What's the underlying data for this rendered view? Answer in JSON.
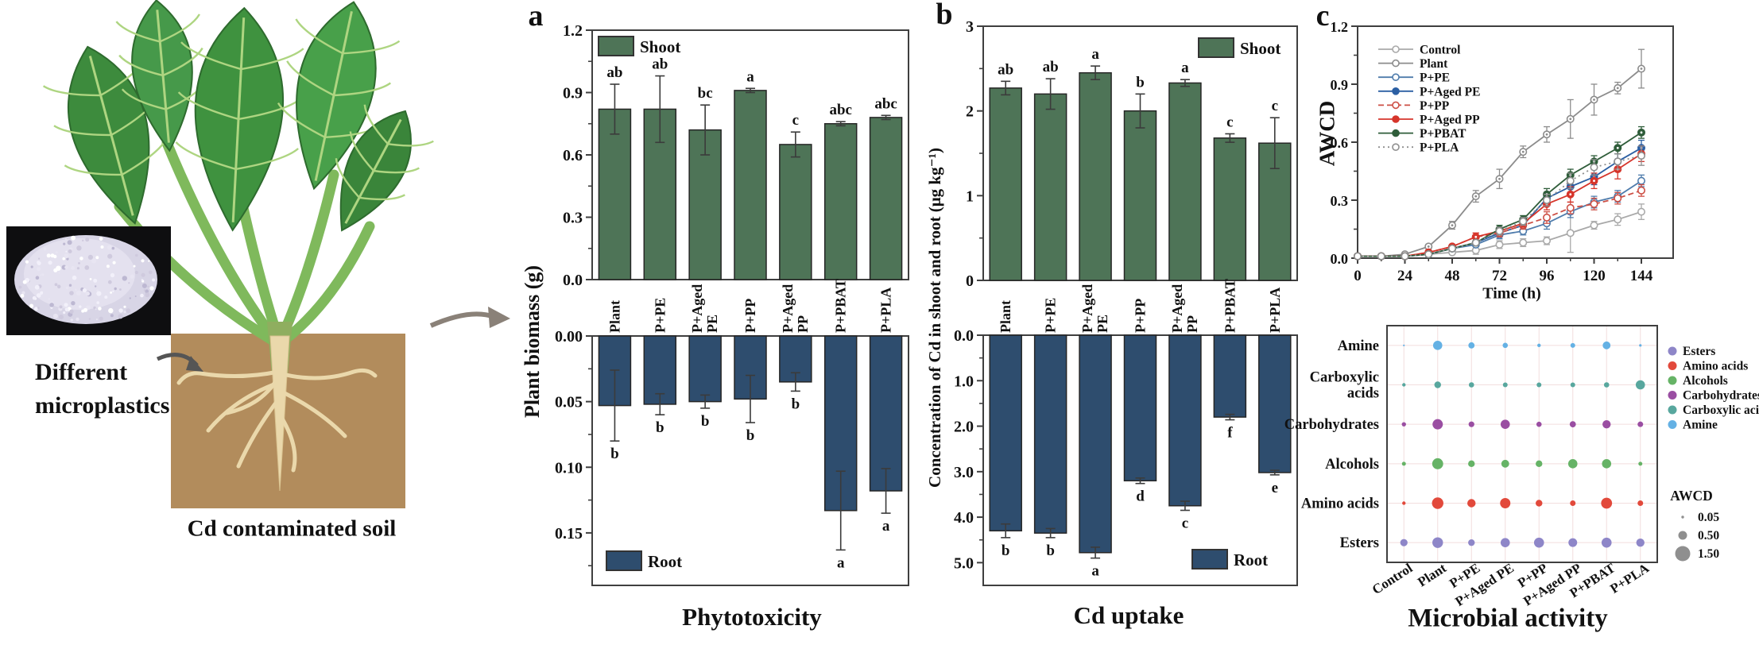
{
  "illustration": {
    "microplastics_label_line1": "Different",
    "microplastics_label_line2": "microplastics",
    "soil_caption": "Cd contaminated soil"
  },
  "panels": {
    "a": {
      "letter": "a",
      "ylabel": "Plant biomass (g)",
      "caption": "Phytotoxicity"
    },
    "b": {
      "letter": "b",
      "ylabel": "Concentration of Cd in shoot and root (μg kg⁻¹)",
      "caption": "Cd uptake"
    },
    "c": {
      "letter": "c",
      "ylabel": "AWCD",
      "xlabel": "Time (h)",
      "caption": "Microbial activity"
    }
  },
  "colors": {
    "shoot_bar": "#4e7457",
    "root_bar": "#2e4d6e",
    "frame": "#3f3f3f"
  },
  "chart_data": [
    {
      "id": "a_shoot",
      "type": "bar",
      "panel": "a",
      "direction": "up",
      "legend": {
        "label": "Shoot",
        "pos": "top-left"
      },
      "categories": [
        "Plant",
        "P+PE",
        "P+Aged PE",
        "P+PP",
        "P+Aged PP",
        "P+PBAT",
        "P+PLA"
      ],
      "values": [
        0.82,
        0.82,
        0.72,
        0.91,
        0.65,
        0.75,
        0.78
      ],
      "errors": [
        0.12,
        0.16,
        0.12,
        0.01,
        0.06,
        0.01,
        0.01
      ],
      "sig_letters": [
        "ab",
        "ab",
        "bc",
        "a",
        "c",
        "abc",
        "abc"
      ],
      "ylabel": "Plant biomass (g)",
      "ylim": [
        0,
        1.2
      ],
      "yticks": [
        0,
        0.3,
        0.6,
        0.9,
        1.2
      ],
      "ytick_labels": [
        "0.0",
        "0.3",
        "0.6",
        "0.9",
        "1.2"
      ],
      "yminor": 0.15,
      "show_category_labels": true
    },
    {
      "id": "a_root",
      "type": "bar",
      "panel": "a",
      "direction": "down",
      "legend": {
        "label": "Root",
        "pos": "bottom-left"
      },
      "categories": [
        "Plant",
        "P+PE",
        "P+Aged PE",
        "P+PP",
        "P+Aged PP",
        "P+PBAT",
        "P+PLA"
      ],
      "values": [
        0.053,
        0.052,
        0.05,
        0.048,
        0.035,
        0.133,
        0.118
      ],
      "errors": [
        0.027,
        0.008,
        0.005,
        0.018,
        0.007,
        0.03,
        0.017
      ],
      "sig_letters": [
        "b",
        "b",
        "b",
        "b",
        "b",
        "a",
        "a"
      ],
      "ylim": [
        0,
        0.19
      ],
      "yticks": [
        0,
        0.05,
        0.1,
        0.15
      ],
      "ytick_labels": [
        "0.00",
        "0.05",
        "0.10",
        "0.15"
      ],
      "yminor": 0.025,
      "show_category_labels": false
    },
    {
      "id": "b_shoot",
      "type": "bar",
      "panel": "b",
      "direction": "up",
      "legend": {
        "label": "Shoot",
        "pos": "top-right"
      },
      "categories": [
        "Plant",
        "P+PE",
        "P+Aged PE",
        "P+PP",
        "P+Aged PP",
        "P+PBAT",
        "P+PLA"
      ],
      "values": [
        2.27,
        2.2,
        2.45,
        2.0,
        2.33,
        1.68,
        1.62
      ],
      "errors": [
        0.08,
        0.18,
        0.08,
        0.2,
        0.04,
        0.05,
        0.3
      ],
      "sig_letters": [
        "ab",
        "ab",
        "a",
        "b",
        "a",
        "c",
        "c"
      ],
      "ylabel": "Concentration of Cd in shoot and root (μg kg⁻¹)",
      "ylim": [
        0,
        3
      ],
      "yticks": [
        0,
        1,
        2,
        3
      ],
      "ytick_labels": [
        "0",
        "1",
        "2",
        "3"
      ],
      "yminor": 0.5,
      "show_category_labels": true
    },
    {
      "id": "b_root",
      "type": "bar",
      "panel": "b",
      "direction": "down",
      "legend": {
        "label": "Root",
        "pos": "bottom-right"
      },
      "categories": [
        "Plant",
        "P+PE",
        "P+Aged PE",
        "P+PP",
        "P+Aged PP",
        "P+PBAT",
        "P+PLA"
      ],
      "values": [
        4.3,
        4.35,
        4.78,
        3.2,
        3.75,
        1.8,
        3.02
      ],
      "errors": [
        0.15,
        0.1,
        0.12,
        0.06,
        0.1,
        0.06,
        0.05
      ],
      "sig_letters": [
        "b",
        "b",
        "a",
        "d",
        "c",
        "f",
        "e"
      ],
      "ylim": [
        0,
        5.5
      ],
      "yticks": [
        0,
        1,
        2,
        3,
        4,
        5
      ],
      "ytick_labels": [
        "0.0",
        "1.0",
        "2.0",
        "3.0",
        "4.0",
        "5.0"
      ],
      "yminor": 0.5,
      "show_category_labels": false
    },
    {
      "id": "c_awcd",
      "type": "line",
      "panel": "c",
      "title": "",
      "xlabel": "Time (h)",
      "ylabel": "AWCD",
      "x": [
        0,
        12,
        24,
        36,
        48,
        60,
        72,
        84,
        96,
        108,
        120,
        132,
        144
      ],
      "xticks": [
        0,
        24,
        48,
        72,
        96,
        120,
        144
      ],
      "xminor": 12,
      "ylim": [
        0,
        1.2
      ],
      "yticks": [
        0,
        0.3,
        0.6,
        0.9,
        1.2
      ],
      "ytick_labels": [
        "0.0",
        "0.3",
        "0.6",
        "0.9",
        "1.2"
      ],
      "yminor": 0.15,
      "legend_position": "top-left",
      "series": [
        {
          "name": "Control",
          "color": "#a9a9a9",
          "marker": "open",
          "dash": "",
          "values": [
            0.01,
            0.01,
            0.01,
            0.02,
            0.03,
            0.04,
            0.07,
            0.08,
            0.09,
            0.13,
            0.17,
            0.2,
            0.24
          ],
          "errors": [
            0,
            0,
            0,
            0.01,
            0.01,
            0.02,
            0.02,
            0.02,
            0.02,
            0.1,
            0.02,
            0.03,
            0.04
          ]
        },
        {
          "name": "Plant",
          "color": "#8c8c8c",
          "marker": "opendot",
          "dash": "",
          "values": [
            0.01,
            0.01,
            0.02,
            0.06,
            0.17,
            0.32,
            0.41,
            0.55,
            0.64,
            0.72,
            0.82,
            0.88,
            0.98
          ],
          "errors": [
            0,
            0,
            0,
            0.01,
            0.02,
            0.03,
            0.05,
            0.03,
            0.04,
            0.1,
            0.08,
            0.03,
            0.1
          ]
        },
        {
          "name": "P+PE",
          "color": "#4f7cac",
          "marker": "open",
          "dash": "",
          "values": [
            0.01,
            0.01,
            0.01,
            0.02,
            0.05,
            0.07,
            0.12,
            0.14,
            0.18,
            0.24,
            0.29,
            0.32,
            0.4
          ],
          "errors": [
            0,
            0,
            0,
            0.01,
            0.01,
            0.01,
            0.02,
            0.02,
            0.03,
            0.03,
            0.03,
            0.03,
            0.03
          ]
        },
        {
          "name": "P+Aged PE",
          "color": "#2b5fa3",
          "marker": "filled",
          "dash": "",
          "values": [
            0.01,
            0.01,
            0.01,
            0.02,
            0.05,
            0.08,
            0.13,
            0.17,
            0.31,
            0.37,
            0.42,
            0.5,
            0.57
          ],
          "errors": [
            0,
            0,
            0,
            0.01,
            0.01,
            0.01,
            0.02,
            0.02,
            0.03,
            0.03,
            0.04,
            0.04,
            0.04
          ]
        },
        {
          "name": "P+PP",
          "color": "#cd4f45",
          "marker": "open",
          "dash": "7,4",
          "values": [
            0.01,
            0.01,
            0.01,
            0.03,
            0.06,
            0.11,
            0.13,
            0.17,
            0.21,
            0.26,
            0.28,
            0.31,
            0.35
          ],
          "errors": [
            0,
            0,
            0,
            0.01,
            0.01,
            0.02,
            0.02,
            0.02,
            0.03,
            0.03,
            0.03,
            0.03,
            0.03
          ]
        },
        {
          "name": "P+Aged PP",
          "color": "#d6352b",
          "marker": "filled",
          "dash": "",
          "values": [
            0.01,
            0.01,
            0.01,
            0.03,
            0.06,
            0.11,
            0.14,
            0.18,
            0.28,
            0.33,
            0.4,
            0.46,
            0.54
          ],
          "errors": [
            0,
            0,
            0,
            0.01,
            0.01,
            0.02,
            0.02,
            0.02,
            0.03,
            0.04,
            0.04,
            0.05,
            0.04
          ]
        },
        {
          "name": "P+PBAT",
          "color": "#2f5d3a",
          "marker": "filled",
          "dash": "",
          "values": [
            0.01,
            0.01,
            0.01,
            0.02,
            0.05,
            0.08,
            0.15,
            0.2,
            0.33,
            0.43,
            0.5,
            0.57,
            0.65
          ],
          "errors": [
            0,
            0,
            0,
            0.01,
            0.01,
            0.01,
            0.02,
            0.02,
            0.03,
            0.03,
            0.03,
            0.03,
            0.03
          ]
        },
        {
          "name": "P+PLA",
          "color": "#8f8f8f",
          "marker": "open",
          "dash": "2,4",
          "values": [
            0.01,
            0.01,
            0.01,
            0.02,
            0.05,
            0.08,
            0.14,
            0.19,
            0.3,
            0.4,
            0.47,
            0.5,
            0.53
          ],
          "errors": [
            0,
            0,
            0,
            0.01,
            0.01,
            0.01,
            0.02,
            0.02,
            0.03,
            0.04,
            0.04,
            0.04,
            0.05
          ]
        }
      ]
    },
    {
      "id": "c_bubble",
      "type": "bubble",
      "panel": "c",
      "columns": [
        "Control",
        "Plant",
        "P+PE",
        "P+Aged PE",
        "P+PP",
        "P+Aged PP",
        "P+PBAT",
        "P+PLA"
      ],
      "rows": [
        {
          "name": "Amine",
          "color": "#64b1e4"
        },
        {
          "name": "Carboxylic\nacids",
          "color": "#58a79e"
        },
        {
          "name": "Carbohydrates",
          "color": "#9a4ea2"
        },
        {
          "name": "Alcohols",
          "color": "#66b366"
        },
        {
          "name": "Amino acids",
          "color": "#e2493b"
        },
        {
          "name": "Esters",
          "color": "#8e86c8"
        }
      ],
      "values": [
        [
          0.02,
          0.55,
          0.25,
          0.18,
          0.08,
          0.15,
          0.4,
          0.04
        ],
        [
          0.08,
          0.3,
          0.18,
          0.15,
          0.15,
          0.15,
          0.18,
          0.55
        ],
        [
          0.12,
          0.7,
          0.22,
          0.55,
          0.18,
          0.25,
          0.45,
          0.2
        ],
        [
          0.1,
          0.8,
          0.3,
          0.4,
          0.3,
          0.55,
          0.55,
          0.1
        ],
        [
          0.08,
          0.85,
          0.45,
          0.7,
          0.3,
          0.2,
          0.8,
          0.2
        ],
        [
          0.35,
          0.75,
          0.3,
          0.55,
          0.65,
          0.5,
          0.65,
          0.45
        ]
      ],
      "legend": [
        {
          "label": "Esters",
          "color": "#8e86c8"
        },
        {
          "label": "Amino acids",
          "color": "#e2493b"
        },
        {
          "label": "Alcohols",
          "color": "#66b366"
        },
        {
          "label": "Carbohydrates",
          "color": "#9a4ea2"
        },
        {
          "label": "Carboxylic acids",
          "color": "#58a79e"
        },
        {
          "label": "Amine",
          "color": "#64b1e4"
        }
      ],
      "size_legend": {
        "title": "AWCD",
        "values": [
          0.05,
          0.5,
          1.5
        ],
        "labels": [
          "0.05",
          "0.50",
          "1.50"
        ]
      }
    }
  ]
}
